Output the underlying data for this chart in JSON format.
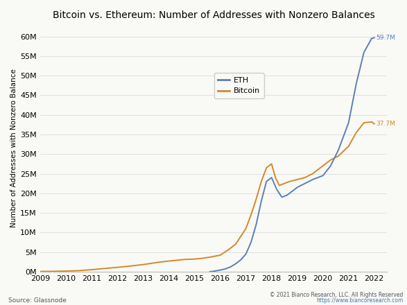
{
  "title": "Bitcoin vs. Ethereum: Number of Addresses with Nonzero Balances",
  "ylabel": "Number of Addresses with Nonzero Balance",
  "source_text": "Source: Glassnode",
  "copyright_text": "© 2021 Bianco Research, LLC. All Rights Reserved",
  "url_text": "https://www.biancoresearch.com",
  "eth_label": "ETH",
  "btc_label": "Bitcoin",
  "eth_color": "#5b7fb5",
  "btc_color": "#d4882a",
  "eth_end_label": "59.7M",
  "btc_end_label": "37.7M",
  "ylim": [
    0,
    63000000
  ],
  "yticks": [
    0,
    5000000,
    10000000,
    15000000,
    20000000,
    25000000,
    30000000,
    35000000,
    40000000,
    45000000,
    50000000,
    55000000,
    60000000
  ],
  "ytick_labels": [
    "0M",
    "5M",
    "10M",
    "15M",
    "20M",
    "25M",
    "30M",
    "35M",
    "40M",
    "45M",
    "50M",
    "55M",
    "60M"
  ],
  "xlim_start": 2009.0,
  "xlim_end": 2022.5,
  "xticks": [
    2009,
    2010,
    2011,
    2012,
    2013,
    2014,
    2015,
    2016,
    2017,
    2018,
    2019,
    2020,
    2021,
    2022
  ],
  "btc_x": [
    2009.0,
    2009.5,
    2010.0,
    2010.5,
    2011.0,
    2011.5,
    2012.0,
    2012.3,
    2012.6,
    2013.0,
    2013.3,
    2013.6,
    2014.0,
    2014.3,
    2014.6,
    2015.0,
    2015.3,
    2015.6,
    2016.0,
    2016.3,
    2016.6,
    2017.0,
    2017.2,
    2017.4,
    2017.6,
    2017.8,
    2018.0,
    2018.15,
    2018.3,
    2018.5,
    2018.7,
    2019.0,
    2019.3,
    2019.6,
    2020.0,
    2020.3,
    2020.6,
    2021.0,
    2021.3,
    2021.6,
    2021.9,
    2022.0
  ],
  "btc_y": [
    50000,
    80000,
    150000,
    250000,
    500000,
    800000,
    1100000,
    1300000,
    1500000,
    1800000,
    2100000,
    2400000,
    2700000,
    2900000,
    3100000,
    3200000,
    3400000,
    3700000,
    4200000,
    5500000,
    7000000,
    11000000,
    14500000,
    18500000,
    23000000,
    26500000,
    27500000,
    24000000,
    22000000,
    22500000,
    23000000,
    23500000,
    24000000,
    25000000,
    27000000,
    28500000,
    29500000,
    32000000,
    35500000,
    38000000,
    38200000,
    37700000
  ],
  "eth_x": [
    2015.6,
    2015.75,
    2016.0,
    2016.2,
    2016.4,
    2016.6,
    2016.8,
    2017.0,
    2017.2,
    2017.4,
    2017.6,
    2017.8,
    2018.0,
    2018.2,
    2018.4,
    2018.6,
    2018.8,
    2019.0,
    2019.3,
    2019.6,
    2020.0,
    2020.3,
    2020.6,
    2021.0,
    2021.3,
    2021.6,
    2021.9,
    2022.0
  ],
  "eth_y": [
    0,
    100000,
    400000,
    700000,
    1200000,
    2000000,
    3000000,
    4500000,
    7500000,
    12000000,
    18000000,
    23000000,
    24000000,
    21000000,
    19000000,
    19500000,
    20500000,
    21500000,
    22500000,
    23500000,
    24500000,
    27000000,
    31000000,
    38000000,
    48000000,
    56000000,
    59500000,
    59700000
  ],
  "background_color": "#f9f9f6",
  "grid_color": "#e0e0e0",
  "title_fontsize": 10,
  "axis_fontsize": 7.5,
  "tick_fontsize": 8,
  "legend_fontsize": 8,
  "source_fontsize": 6.5,
  "copyright_fontsize": 5.5
}
